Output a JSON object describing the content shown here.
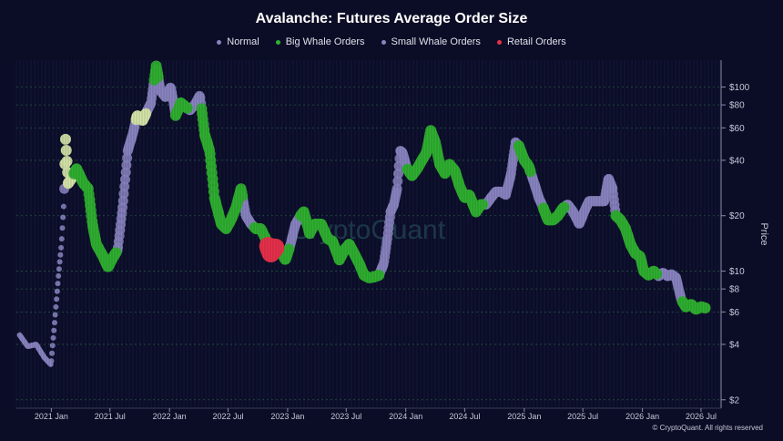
{
  "chart_data": {
    "type": "scatter",
    "title": "Avalanche: Futures Average Order Size",
    "ylabel": "Price",
    "yscale": "log",
    "ylim": [
      1.8,
      140
    ],
    "xlim": [
      "2020-09-15",
      "2026-09-01"
    ],
    "grid": true,
    "legend_position": "top",
    "x_ticks": [
      {
        "date": "2021-01-01",
        "label": "2021 Jan"
      },
      {
        "date": "2021-07-01",
        "label": "2021 Jul"
      },
      {
        "date": "2022-01-01",
        "label": "2022 Jan"
      },
      {
        "date": "2022-07-01",
        "label": "2022 Jul"
      },
      {
        "date": "2023-01-01",
        "label": "2023 Jan"
      },
      {
        "date": "2023-07-01",
        "label": "2023 Jul"
      },
      {
        "date": "2024-01-01",
        "label": "2024 Jan"
      },
      {
        "date": "2024-07-01",
        "label": "2024 Jul"
      },
      {
        "date": "2025-01-01",
        "label": "2025 Jan"
      },
      {
        "date": "2025-07-01",
        "label": "2025 Jul"
      },
      {
        "date": "2026-01-01",
        "label": "2026 Jan"
      },
      {
        "date": "2026-07-01",
        "label": "2026 Jul"
      }
    ],
    "y_ticks": [
      {
        "value": 100,
        "label": "$100"
      },
      {
        "value": 80,
        "label": "$80"
      },
      {
        "value": 60,
        "label": "$60"
      },
      {
        "value": 40,
        "label": "$40"
      },
      {
        "value": 20,
        "label": "$20"
      },
      {
        "value": 10,
        "label": "$10"
      },
      {
        "value": 8,
        "label": "$8"
      },
      {
        "value": 6,
        "label": "$6"
      },
      {
        "value": 4,
        "label": "$4"
      },
      {
        "value": 2,
        "label": "$2"
      }
    ],
    "series": [
      {
        "name": "Normal",
        "color": "#8a84c0"
      },
      {
        "name": "Big Whale Orders",
        "color": "#2fb02f"
      },
      {
        "name": "Small Whale Orders",
        "color": "#d6e6a8"
      },
      {
        "name": "Retail Orders",
        "color": "#e8304a"
      }
    ],
    "price": [
      [
        "2020-09-25",
        4.5
      ],
      [
        "2020-10-20",
        3.9
      ],
      [
        "2020-11-15",
        4.0
      ],
      [
        "2020-12-10",
        3.4
      ],
      [
        "2020-12-31",
        3.1
      ],
      [
        "2021-01-10",
        5.0
      ],
      [
        "2021-01-22",
        9.0
      ],
      [
        "2021-02-01",
        14
      ],
      [
        "2021-02-09",
        24
      ],
      [
        "2021-02-14",
        52
      ],
      [
        "2021-02-22",
        30
      ],
      [
        "2021-03-05",
        32
      ],
      [
        "2021-03-20",
        36
      ],
      [
        "2021-04-10",
        30
      ],
      [
        "2021-04-25",
        28
      ],
      [
        "2021-05-08",
        18
      ],
      [
        "2021-05-20",
        14
      ],
      [
        "2021-06-10",
        12
      ],
      [
        "2021-06-25",
        10.5
      ],
      [
        "2021-07-12",
        12
      ],
      [
        "2021-07-25",
        13
      ],
      [
        "2021-08-10",
        23
      ],
      [
        "2021-08-25",
        45
      ],
      [
        "2021-09-10",
        56
      ],
      [
        "2021-09-23",
        70
      ],
      [
        "2021-10-10",
        66
      ],
      [
        "2021-11-05",
        82
      ],
      [
        "2021-11-21",
        130
      ],
      [
        "2021-12-05",
        95
      ],
      [
        "2021-12-20",
        88
      ],
      [
        "2022-01-05",
        100
      ],
      [
        "2022-01-20",
        70
      ],
      [
        "2022-02-05",
        82
      ],
      [
        "2022-02-20",
        78
      ],
      [
        "2022-03-05",
        75
      ],
      [
        "2022-03-20",
        80
      ],
      [
        "2022-04-05",
        90
      ],
      [
        "2022-04-20",
        55
      ],
      [
        "2022-05-05",
        45
      ],
      [
        "2022-05-20",
        25
      ],
      [
        "2022-06-10",
        18
      ],
      [
        "2022-06-25",
        17
      ],
      [
        "2022-07-10",
        19
      ],
      [
        "2022-07-25",
        22
      ],
      [
        "2022-08-10",
        28
      ],
      [
        "2022-08-25",
        20
      ],
      [
        "2022-09-10",
        18
      ],
      [
        "2022-09-25",
        17
      ],
      [
        "2022-10-10",
        17
      ],
      [
        "2022-10-25",
        15
      ],
      [
        "2022-11-10",
        12.5
      ],
      [
        "2022-11-25",
        13.5
      ],
      [
        "2022-12-10",
        13
      ],
      [
        "2022-12-25",
        11.5
      ],
      [
        "2023-01-10",
        14
      ],
      [
        "2023-01-25",
        18
      ],
      [
        "2023-02-10",
        20
      ],
      [
        "2023-02-20",
        21
      ],
      [
        "2023-03-10",
        16
      ],
      [
        "2023-03-25",
        18
      ],
      [
        "2023-04-15",
        18
      ],
      [
        "2023-05-05",
        15
      ],
      [
        "2023-05-20",
        14.5
      ],
      [
        "2023-06-10",
        11.5
      ],
      [
        "2023-06-25",
        13
      ],
      [
        "2023-07-10",
        14
      ],
      [
        "2023-07-25",
        12.5
      ],
      [
        "2023-08-10",
        11.0
      ],
      [
        "2023-08-25",
        9.5
      ],
      [
        "2023-09-10",
        9.2
      ],
      [
        "2023-09-25",
        9.3
      ],
      [
        "2023-10-10",
        9.5
      ],
      [
        "2023-10-25",
        11.0
      ],
      [
        "2023-11-05",
        15
      ],
      [
        "2023-11-15",
        21
      ],
      [
        "2023-11-25",
        23
      ],
      [
        "2023-12-05",
        28
      ],
      [
        "2023-12-15",
        45
      ],
      [
        "2023-12-22",
        44
      ],
      [
        "2024-01-05",
        36
      ],
      [
        "2024-01-20",
        33
      ],
      [
        "2024-02-05",
        36
      ],
      [
        "2024-02-20",
        40
      ],
      [
        "2024-03-05",
        44
      ],
      [
        "2024-03-18",
        58
      ],
      [
        "2024-04-01",
        50
      ],
      [
        "2024-04-15",
        38
      ],
      [
        "2024-05-01",
        34
      ],
      [
        "2024-05-15",
        38
      ],
      [
        "2024-06-01",
        35
      ],
      [
        "2024-06-15",
        29
      ],
      [
        "2024-07-01",
        25
      ],
      [
        "2024-07-15",
        26
      ],
      [
        "2024-08-05",
        21
      ],
      [
        "2024-08-20",
        23
      ],
      [
        "2024-09-05",
        23
      ],
      [
        "2024-09-20",
        25
      ],
      [
        "2024-10-05",
        27
      ],
      [
        "2024-10-20",
        27
      ],
      [
        "2024-11-05",
        26
      ],
      [
        "2024-11-20",
        33
      ],
      [
        "2024-12-05",
        50
      ],
      [
        "2024-12-15",
        48
      ],
      [
        "2025-01-01",
        40
      ],
      [
        "2025-01-15",
        37
      ],
      [
        "2025-02-01",
        30
      ],
      [
        "2025-02-15",
        25
      ],
      [
        "2025-03-01",
        22
      ],
      [
        "2025-03-15",
        19
      ],
      [
        "2025-04-01",
        19
      ],
      [
        "2025-04-15",
        20
      ],
      [
        "2025-05-01",
        22
      ],
      [
        "2025-05-15",
        23
      ],
      [
        "2025-06-01",
        21
      ],
      [
        "2025-06-20",
        18
      ],
      [
        "2025-07-05",
        21
      ],
      [
        "2025-07-20",
        24
      ],
      [
        "2025-08-05",
        24
      ],
      [
        "2025-08-20",
        24
      ],
      [
        "2025-09-05",
        24
      ],
      [
        "2025-09-18",
        32
      ],
      [
        "2025-10-01",
        28
      ],
      [
        "2025-10-11",
        20
      ],
      [
        "2025-10-25",
        19
      ],
      [
        "2025-11-10",
        17
      ],
      [
        "2025-11-25",
        14
      ],
      [
        "2025-12-10",
        12.5
      ],
      [
        "2025-12-25",
        12
      ],
      [
        "2026-01-05",
        10
      ],
      [
        "2026-01-20",
        9.5
      ],
      [
        "2026-02-05",
        10
      ],
      [
        "2026-02-20",
        9.4
      ],
      [
        "2026-03-05",
        9.8
      ],
      [
        "2026-03-20",
        9.4
      ],
      [
        "2026-04-01",
        9.6
      ],
      [
        "2026-04-15",
        9.2
      ],
      [
        "2026-05-01",
        7.0
      ],
      [
        "2026-05-15",
        6.4
      ],
      [
        "2026-06-01",
        6.6
      ],
      [
        "2026-06-15",
        6.2
      ],
      [
        "2026-07-01",
        6.4
      ],
      [
        "2026-07-15",
        6.3
      ]
    ],
    "classified_segments": [
      {
        "series": "Small Whale Orders",
        "from": "2021-02-12",
        "to": "2021-03-10"
      },
      {
        "series": "Big Whale Orders",
        "from": "2021-03-10",
        "to": "2021-07-20"
      },
      {
        "series": "Small Whale Orders",
        "from": "2021-09-20",
        "to": "2021-10-20"
      },
      {
        "series": "Big Whale Orders",
        "from": "2021-11-15",
        "to": "2021-11-28"
      },
      {
        "series": "Big Whale Orders",
        "from": "2022-01-20",
        "to": "2022-02-25"
      },
      {
        "series": "Big Whale Orders",
        "from": "2022-04-10",
        "to": "2022-08-15"
      },
      {
        "series": "Big Whale Orders",
        "from": "2022-09-20",
        "to": "2022-10-25"
      },
      {
        "series": "Retail Orders",
        "from": "2022-11-01",
        "to": "2022-11-25"
      },
      {
        "series": "Big Whale Orders",
        "from": "2022-11-28",
        "to": "2023-01-05"
      },
      {
        "series": "Big Whale Orders",
        "from": "2023-02-10",
        "to": "2023-10-10"
      },
      {
        "series": "Big Whale Orders",
        "from": "2024-01-05",
        "to": "2024-08-25"
      },
      {
        "series": "Big Whale Orders",
        "from": "2024-12-15",
        "to": "2025-01-20"
      },
      {
        "series": "Big Whale Orders",
        "from": "2025-03-01",
        "to": "2025-05-05"
      },
      {
        "series": "Big Whale Orders",
        "from": "2025-10-11",
        "to": "2026-02-15"
      },
      {
        "series": "Big Whale Orders",
        "from": "2026-05-05",
        "to": "2026-07-20"
      }
    ],
    "watermark": "CryptoQuant",
    "copyright": "© CryptoQuant. All rights reserved"
  }
}
